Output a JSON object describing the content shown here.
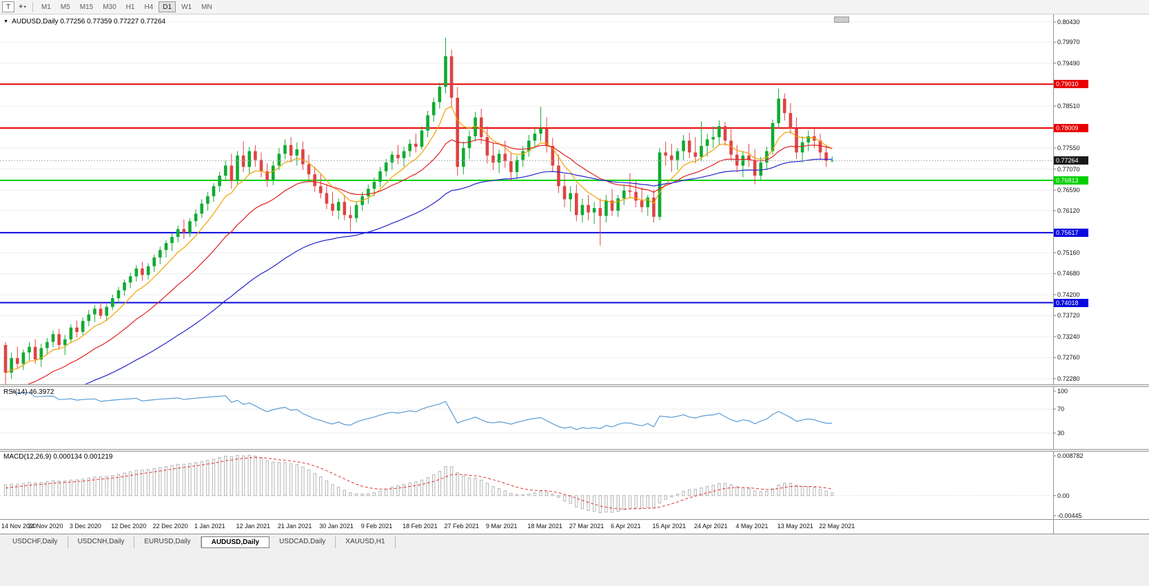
{
  "toolbar": {
    "text_tool": "T",
    "cursor_tool_icon": "+",
    "dropdown_caret": "▾",
    "timeframes": [
      "M1",
      "M5",
      "M15",
      "M30",
      "H1",
      "H4",
      "D1",
      "W1",
      "MN"
    ],
    "active_timeframe": "D1"
  },
  "chart_window": {
    "menu_marker": "▼",
    "title_symbol": "AUDUSD,Daily",
    "title_ohlc": "0.77256 0.77359 0.77227 0.77264"
  },
  "chart_data": {
    "type": "candlestick",
    "symbol": "AUDUSD",
    "timeframe": "Daily",
    "y_range": [
      0.7228,
      0.8043
    ],
    "y_ticks": [
      "0.80430",
      "0.79970",
      "0.79490",
      "0.78510",
      "0.77550",
      "0.77070",
      "0.76590",
      "0.76120",
      "0.75160",
      "0.74680",
      "0.74200",
      "0.73720",
      "0.73240",
      "0.72760",
      "0.72280"
    ],
    "x_labels": [
      "14 Nov 2020",
      "24 Nov 2020",
      "3 Dec 2020",
      "12 Dec 2020",
      "22 Dec 2020",
      "1 Jan 2021",
      "12 Jan 2021",
      "21 Jan 2021",
      "30 Jan 2021",
      "9 Feb 2021",
      "18 Feb 2021",
      "27 Feb 2021",
      "9 Mar 2021",
      "18 Mar 2021",
      "27 Mar 2021",
      "6 Apr 2021",
      "15 Apr 2021",
      "24 Apr 2021",
      "4 May 2021",
      "13 May 2021",
      "22 May 2021"
    ],
    "colors": {
      "up": "#0fab32",
      "down": "#e04343",
      "grid": "#ededed"
    },
    "moving_averages": [
      {
        "period": 8,
        "color": "#f0a000",
        "seed": 0.724
      },
      {
        "period": 21,
        "color": "#e02020",
        "seed": 0.718
      },
      {
        "period": 55,
        "color": "#2222cc",
        "seed": 0.715
      }
    ],
    "horizontal_levels": [
      {
        "price": 0.7901,
        "label": "0.79010",
        "color": "#e80000"
      },
      {
        "price": 0.78009,
        "label": "0.78009",
        "color": "#e80000"
      },
      {
        "price": 0.76813,
        "label": "0.76813",
        "color": "#00d000"
      },
      {
        "price": 0.75617,
        "label": "0.75617",
        "color": "#0a0adf"
      },
      {
        "price": 0.74018,
        "label": "0.74018",
        "color": "#0a0adf"
      }
    ],
    "current_price": {
      "price": 0.77264,
      "label": "0.77264",
      "color": "#1a1a1a"
    },
    "candles": [
      [
        0.7305,
        0.7312,
        0.7215,
        0.7242
      ],
      [
        0.7242,
        0.7288,
        0.7228,
        0.7275
      ],
      [
        0.7275,
        0.7301,
        0.7252,
        0.7262
      ],
      [
        0.7262,
        0.7295,
        0.7248,
        0.7288
      ],
      [
        0.7288,
        0.7312,
        0.727,
        0.7301
      ],
      [
        0.7301,
        0.7318,
        0.7262,
        0.7272
      ],
      [
        0.7272,
        0.7308,
        0.7255,
        0.7298
      ],
      [
        0.7298,
        0.7321,
        0.7285,
        0.7312
      ],
      [
        0.7312,
        0.7338,
        0.73,
        0.733
      ],
      [
        0.733,
        0.7342,
        0.7295,
        0.7305
      ],
      [
        0.7305,
        0.7328,
        0.7282,
        0.7318
      ],
      [
        0.7318,
        0.7352,
        0.731,
        0.7345
      ],
      [
        0.7345,
        0.7361,
        0.7322,
        0.7335
      ],
      [
        0.7335,
        0.7368,
        0.7328,
        0.736
      ],
      [
        0.736,
        0.7385,
        0.7348,
        0.7375
      ],
      [
        0.7375,
        0.7396,
        0.7358,
        0.7388
      ],
      [
        0.7388,
        0.7402,
        0.7365,
        0.7372
      ],
      [
        0.7372,
        0.7398,
        0.736,
        0.7392
      ],
      [
        0.7392,
        0.742,
        0.7385,
        0.7412
      ],
      [
        0.7412,
        0.7438,
        0.74,
        0.743
      ],
      [
        0.743,
        0.7455,
        0.7418,
        0.7448
      ],
      [
        0.7448,
        0.747,
        0.7435,
        0.7462
      ],
      [
        0.7462,
        0.7488,
        0.745,
        0.748
      ],
      [
        0.748,
        0.7495,
        0.7452,
        0.7465
      ],
      [
        0.7465,
        0.7492,
        0.7455,
        0.7485
      ],
      [
        0.7485,
        0.7512,
        0.7472,
        0.7505
      ],
      [
        0.7505,
        0.753,
        0.749,
        0.7522
      ],
      [
        0.7522,
        0.7545,
        0.7505,
        0.7538
      ],
      [
        0.7538,
        0.7561,
        0.752,
        0.7552
      ],
      [
        0.7552,
        0.7578,
        0.754,
        0.757
      ],
      [
        0.757,
        0.7592,
        0.7548,
        0.7562
      ],
      [
        0.7562,
        0.7595,
        0.7552,
        0.7588
      ],
      [
        0.7588,
        0.7615,
        0.7575,
        0.7605
      ],
      [
        0.7605,
        0.7638,
        0.7595,
        0.7628
      ],
      [
        0.7628,
        0.7655,
        0.7612,
        0.7645
      ],
      [
        0.7645,
        0.7675,
        0.7632,
        0.7668
      ],
      [
        0.7668,
        0.7701,
        0.7655,
        0.7692
      ],
      [
        0.7692,
        0.7726,
        0.768,
        0.7715
      ],
      [
        0.7715,
        0.7742,
        0.7662,
        0.768
      ],
      [
        0.768,
        0.7748,
        0.767,
        0.7738
      ],
      [
        0.7738,
        0.7771,
        0.77,
        0.7712
      ],
      [
        0.7712,
        0.7758,
        0.7695,
        0.7748
      ],
      [
        0.7748,
        0.7762,
        0.7712,
        0.7728
      ],
      [
        0.7728,
        0.7745,
        0.7688,
        0.7702
      ],
      [
        0.7702,
        0.772,
        0.7666,
        0.7682
      ],
      [
        0.7682,
        0.7725,
        0.767,
        0.7715
      ],
      [
        0.7715,
        0.7755,
        0.7705,
        0.7742
      ],
      [
        0.7742,
        0.7775,
        0.773,
        0.7762
      ],
      [
        0.7762,
        0.778,
        0.7722,
        0.7738
      ],
      [
        0.7738,
        0.7768,
        0.7715,
        0.7752
      ],
      [
        0.7752,
        0.777,
        0.7705,
        0.7718
      ],
      [
        0.7718,
        0.774,
        0.7682,
        0.7695
      ],
      [
        0.7695,
        0.7712,
        0.7655,
        0.7668
      ],
      [
        0.7668,
        0.7695,
        0.764,
        0.7652
      ],
      [
        0.7652,
        0.7672,
        0.7615,
        0.7628
      ],
      [
        0.7628,
        0.7655,
        0.76,
        0.7612
      ],
      [
        0.7612,
        0.764,
        0.7592,
        0.7632
      ],
      [
        0.7632,
        0.7648,
        0.759,
        0.7602
      ],
      [
        0.7602,
        0.7622,
        0.7565,
        0.7595
      ],
      [
        0.7595,
        0.7632,
        0.7585,
        0.7625
      ],
      [
        0.7625,
        0.7655,
        0.7612,
        0.7645
      ],
      [
        0.7645,
        0.7672,
        0.7628,
        0.7662
      ],
      [
        0.7662,
        0.7688,
        0.7645,
        0.7678
      ],
      [
        0.7678,
        0.7712,
        0.7665,
        0.7702
      ],
      [
        0.7702,
        0.773,
        0.769,
        0.7722
      ],
      [
        0.7722,
        0.7748,
        0.7705,
        0.774
      ],
      [
        0.774,
        0.7762,
        0.7718,
        0.7732
      ],
      [
        0.7732,
        0.7758,
        0.7712,
        0.7748
      ],
      [
        0.7748,
        0.7775,
        0.7735,
        0.7765
      ],
      [
        0.7765,
        0.7788,
        0.7745,
        0.7758
      ],
      [
        0.7758,
        0.7805,
        0.7752,
        0.7795
      ],
      [
        0.7795,
        0.784,
        0.778,
        0.783
      ],
      [
        0.783,
        0.787,
        0.7815,
        0.786
      ],
      [
        0.786,
        0.7905,
        0.7845,
        0.7895
      ],
      [
        0.7895,
        0.8007,
        0.788,
        0.7965
      ],
      [
        0.7965,
        0.798,
        0.785,
        0.787
      ],
      [
        0.787,
        0.7895,
        0.7692,
        0.7712
      ],
      [
        0.7712,
        0.777,
        0.7695,
        0.7755
      ],
      [
        0.7755,
        0.7795,
        0.773,
        0.7782
      ],
      [
        0.7782,
        0.7838,
        0.777,
        0.7825
      ],
      [
        0.7825,
        0.7845,
        0.7765,
        0.778
      ],
      [
        0.778,
        0.7805,
        0.772,
        0.7738
      ],
      [
        0.7738,
        0.7768,
        0.7705,
        0.7722
      ],
      [
        0.7722,
        0.7752,
        0.7698,
        0.7742
      ],
      [
        0.7742,
        0.7772,
        0.771,
        0.7725
      ],
      [
        0.7725,
        0.7745,
        0.768,
        0.77
      ],
      [
        0.77,
        0.7738,
        0.7685,
        0.7728
      ],
      [
        0.7728,
        0.776,
        0.7712,
        0.7748
      ],
      [
        0.7748,
        0.7785,
        0.7735,
        0.7772
      ],
      [
        0.7772,
        0.78,
        0.7755,
        0.7788
      ],
      [
        0.7788,
        0.7849,
        0.777,
        0.78
      ],
      [
        0.78,
        0.7825,
        0.7745,
        0.776
      ],
      [
        0.776,
        0.7778,
        0.77,
        0.7715
      ],
      [
        0.7715,
        0.774,
        0.7652,
        0.7668
      ],
      [
        0.7668,
        0.7695,
        0.762,
        0.7638
      ],
      [
        0.7638,
        0.7668,
        0.761,
        0.7652
      ],
      [
        0.7652,
        0.7672,
        0.7588,
        0.7602
      ],
      [
        0.7602,
        0.764,
        0.7585,
        0.7625
      ],
      [
        0.7625,
        0.7648,
        0.759,
        0.7608
      ],
      [
        0.7608,
        0.7632,
        0.7582,
        0.7618
      ],
      [
        0.7618,
        0.764,
        0.7532,
        0.76
      ],
      [
        0.76,
        0.7648,
        0.7585,
        0.7635
      ],
      [
        0.7635,
        0.7662,
        0.76,
        0.7612
      ],
      [
        0.7612,
        0.7648,
        0.7598,
        0.764
      ],
      [
        0.764,
        0.7672,
        0.7625,
        0.7658
      ],
      [
        0.7658,
        0.7698,
        0.7642,
        0.7655
      ],
      [
        0.7655,
        0.768,
        0.762,
        0.7635
      ],
      [
        0.7635,
        0.7665,
        0.7608,
        0.762
      ],
      [
        0.762,
        0.7648,
        0.76,
        0.7642
      ],
      [
        0.7642,
        0.766,
        0.7585,
        0.7598
      ],
      [
        0.7598,
        0.7755,
        0.759,
        0.7745
      ],
      [
        0.7745,
        0.777,
        0.7715,
        0.7738
      ],
      [
        0.7738,
        0.7765,
        0.77,
        0.7728
      ],
      [
        0.7728,
        0.7755,
        0.7705,
        0.7748
      ],
      [
        0.7748,
        0.7785,
        0.7728,
        0.7772
      ],
      [
        0.7772,
        0.779,
        0.7732,
        0.7745
      ],
      [
        0.7745,
        0.778,
        0.772,
        0.7735
      ],
      [
        0.7735,
        0.7816,
        0.7725,
        0.776
      ],
      [
        0.776,
        0.7788,
        0.7735,
        0.7775
      ],
      [
        0.7775,
        0.7805,
        0.7755,
        0.778
      ],
      [
        0.778,
        0.7818,
        0.7762,
        0.7805
      ],
      [
        0.7805,
        0.7815,
        0.776,
        0.7772
      ],
      [
        0.7772,
        0.7798,
        0.7725,
        0.774
      ],
      [
        0.774,
        0.7762,
        0.77,
        0.7715
      ],
      [
        0.7715,
        0.7748,
        0.7688,
        0.7738
      ],
      [
        0.7738,
        0.7765,
        0.7712,
        0.7728
      ],
      [
        0.7728,
        0.7752,
        0.7672,
        0.7692
      ],
      [
        0.7692,
        0.7735,
        0.768,
        0.7722
      ],
      [
        0.7722,
        0.7758,
        0.7705,
        0.7748
      ],
      [
        0.7748,
        0.782,
        0.774,
        0.7812
      ],
      [
        0.7812,
        0.7891,
        0.78,
        0.7868
      ],
      [
        0.7868,
        0.788,
        0.7818,
        0.7835
      ],
      [
        0.7835,
        0.7858,
        0.7788,
        0.78
      ],
      [
        0.78,
        0.7825,
        0.773,
        0.7745
      ],
      [
        0.7745,
        0.7782,
        0.7722,
        0.7768
      ],
      [
        0.7768,
        0.7795,
        0.7748,
        0.7782
      ],
      [
        0.7782,
        0.78,
        0.7755,
        0.7772
      ],
      [
        0.7772,
        0.7788,
        0.773,
        0.7745
      ],
      [
        0.7745,
        0.7762,
        0.7712,
        0.7726
      ],
      [
        0.77256,
        0.77359,
        0.77227,
        0.77264
      ]
    ],
    "rsi": {
      "name": "RSI(14)",
      "value": "46.3972",
      "period": 14,
      "color": "#5a9bd4",
      "levels": [
        {
          "label": "100",
          "v": 100
        },
        {
          "label": "70",
          "v": 70
        },
        {
          "label": "30",
          "v": 30
        }
      ]
    },
    "macd": {
      "name": "MACD(12,26,9)",
      "values": "0.000134 0.001219",
      "fast": 12,
      "slow": 26,
      "signal": 9,
      "bar_color": "#b4b4b4",
      "signal_color": "#e03030",
      "axis": [
        {
          "label": "0.008782",
          "v": 0.008782
        },
        {
          "label": "0.00",
          "v": 0
        },
        {
          "label": "-0.00445",
          "v": -0.00445
        }
      ]
    }
  },
  "tabs": {
    "items": [
      "USDCHF,Daily",
      "USDCNH,Daily",
      "EURUSD,Daily",
      "AUDUSD,Daily",
      "USDCAD,Daily",
      "XAUUSD,H1"
    ],
    "active": "AUDUSD,Daily"
  }
}
